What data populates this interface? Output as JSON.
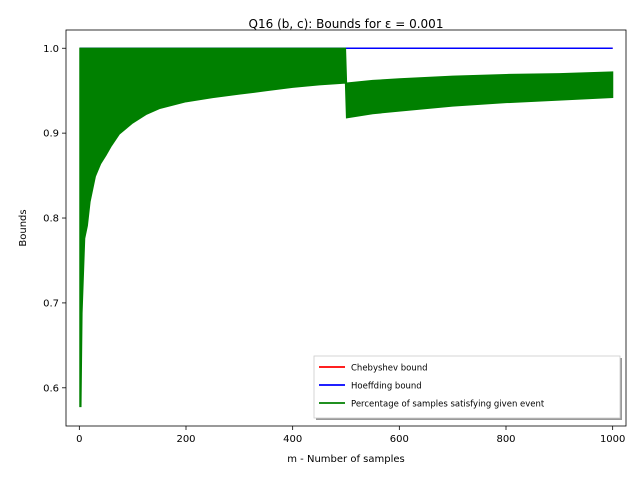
{
  "chart_data": {
    "type": "line",
    "title": "Q16 (b, c): Bounds for ε = 0.001",
    "xlabel": "m - Number of samples",
    "ylabel": "Bounds",
    "xlim": [
      -25,
      1025
    ],
    "ylim": [
      0.555,
      1.0215
    ],
    "xticks": [
      0,
      200,
      400,
      600,
      800,
      1000
    ],
    "xtick_labels": [
      "0",
      "200",
      "400",
      "600",
      "800",
      "1000"
    ],
    "yticks": [
      0.6,
      0.7,
      0.8,
      0.9,
      1.0
    ],
    "ytick_labels": [
      "0.6",
      "0.7",
      "0.8",
      "0.9",
      "1.0"
    ],
    "grid": false,
    "legend_position": "lower-right",
    "series": [
      {
        "name": "Chebyshev bound",
        "color": "#ff0000",
        "style": "line",
        "x": [
          1,
          1000
        ],
        "y": [
          1.0,
          1.0
        ]
      },
      {
        "name": "Hoeffding bound",
        "color": "#0000ff",
        "style": "line",
        "x": [
          1,
          1000
        ],
        "y": [
          1.0,
          1.0
        ]
      },
      {
        "name": "Percentage of samples satisfying given event",
        "color": "#008000",
        "style": "band",
        "x": [
          1,
          3,
          5,
          8,
          10,
          15,
          20,
          25,
          30,
          40,
          50,
          60,
          75,
          100,
          125,
          150,
          200,
          250,
          300,
          350,
          400,
          450,
          499,
          501,
          550,
          600,
          700,
          800,
          900,
          1000
        ],
        "upper": [
          1.0,
          1.0,
          1.0,
          1.0,
          1.0,
          1.0,
          1.0,
          1.0,
          1.0,
          1.0,
          1.0,
          1.0,
          1.0,
          1.0,
          1.0,
          1.0,
          1.0,
          1.0,
          1.0,
          1.0,
          1.0,
          1.0,
          1.0,
          0.959,
          0.962,
          0.964,
          0.967,
          0.969,
          0.97,
          0.972
        ],
        "lower": [
          0.578,
          0.578,
          0.688,
          0.741,
          0.776,
          0.791,
          0.819,
          0.834,
          0.849,
          0.864,
          0.874,
          0.885,
          0.899,
          0.912,
          0.922,
          0.929,
          0.937,
          0.942,
          0.946,
          0.95,
          0.954,
          0.957,
          0.959,
          0.918,
          0.923,
          0.926,
          0.932,
          0.936,
          0.939,
          0.942
        ]
      }
    ]
  }
}
